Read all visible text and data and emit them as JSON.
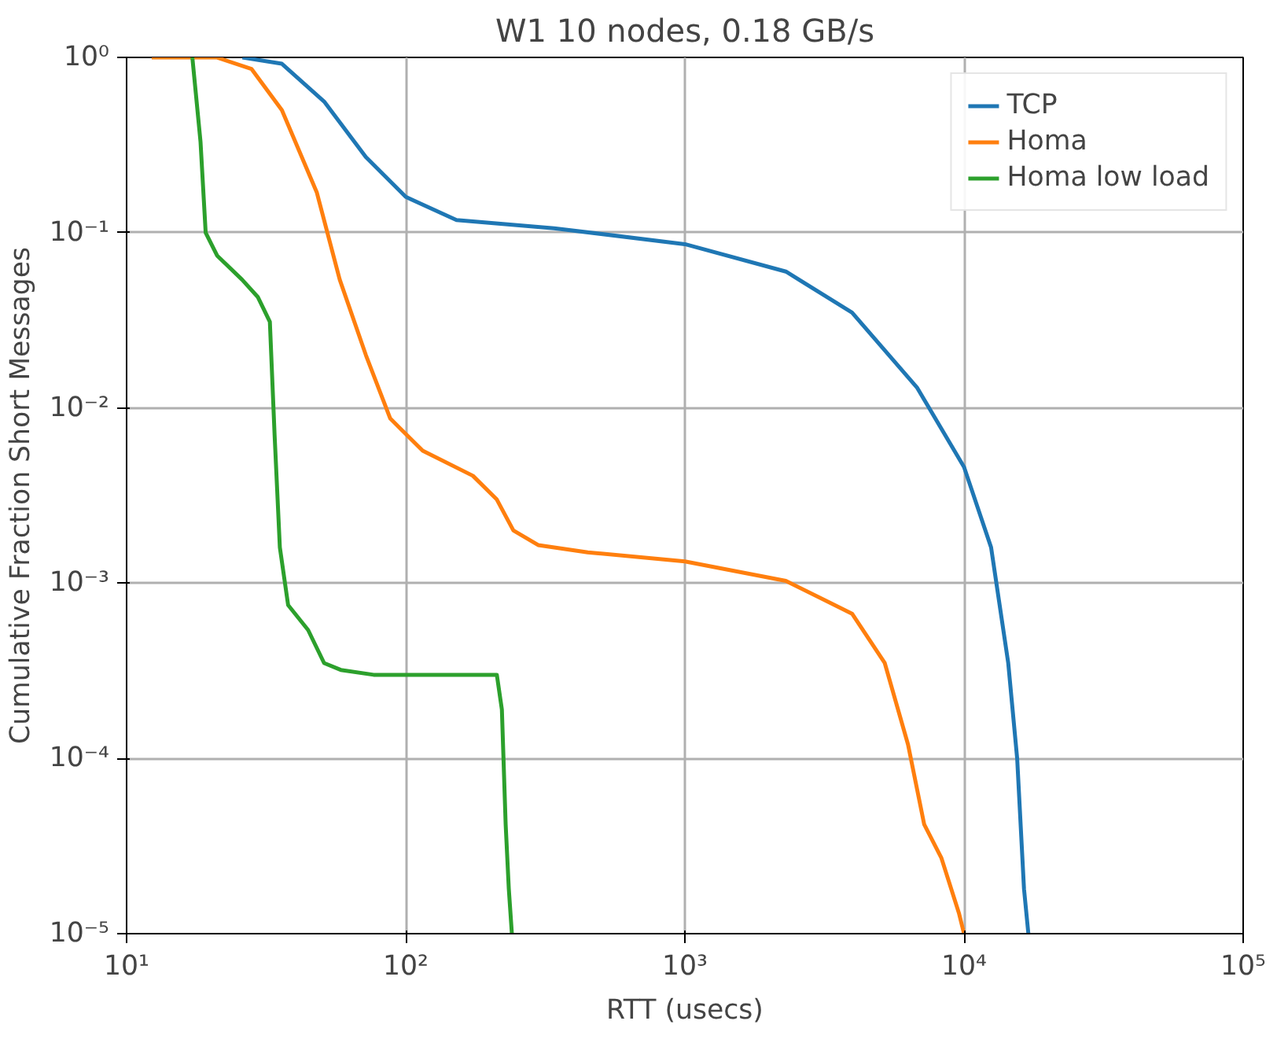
{
  "chart_data": {
    "type": "line",
    "title": "W1 10 nodes, 0.18 GB/s",
    "xlabel": "RTT (usecs)",
    "ylabel": "Cumulative Fraction Short Messages",
    "log": "xy",
    "grid": true,
    "legend": "top right",
    "line_style": "solid",
    "xlim": [
      10,
      100000
    ],
    "ylim": [
      1e-05,
      1
    ],
    "xticks": [
      {
        "value": 10,
        "label": "10¹"
      },
      {
        "value": 100,
        "label": "10²"
      },
      {
        "value": 1000,
        "label": "10³"
      },
      {
        "value": 10000,
        "label": "10⁴"
      },
      {
        "value": 100000,
        "label": "10⁵"
      }
    ],
    "yticks": [
      {
        "value": 1e-05,
        "label": "10⁻⁵"
      },
      {
        "value": 0.0001,
        "label": "10⁻⁴"
      },
      {
        "value": 0.001,
        "label": "10⁻³"
      },
      {
        "value": 0.01,
        "label": "10⁻²"
      },
      {
        "value": 0.1,
        "label": "10⁻¹"
      },
      {
        "value": 1,
        "label": "10⁰"
      }
    ],
    "series": [
      {
        "name": "TCP",
        "color": "#1f77b4",
        "x": [
          26,
          36,
          51,
          72,
          100,
          152,
          340,
          1000,
          2300,
          3970,
          6800,
          10000,
          12500,
          14400,
          15500,
          16400,
          17000
        ],
        "values": [
          1,
          0.92,
          0.56,
          0.27,
          0.16,
          0.118,
          0.106,
          0.086,
          0.06,
          0.035,
          0.013,
          0.0046,
          0.0016,
          0.00035,
          0.0001,
          1.8e-05,
          1e-05
        ]
      },
      {
        "name": "Homa",
        "color": "#ff7f0e",
        "x": [
          12.3,
          21,
          28,
          36,
          48,
          58,
          72,
          88,
          115,
          174,
          212,
          243,
          298,
          449,
          1000,
          2300,
          3970,
          5200,
          6300,
          7200,
          8300,
          9600,
          10000
        ],
        "values": [
          1,
          1,
          0.86,
          0.5,
          0.17,
          0.054,
          0.02,
          0.0087,
          0.0057,
          0.0041,
          0.003,
          0.002,
          0.00165,
          0.0015,
          0.00133,
          0.00103,
          0.00067,
          0.00035,
          0.00012,
          4.2e-05,
          2.7e-05,
          1.3e-05,
          1e-05
        ]
      },
      {
        "name": "Homa low load",
        "color": "#2ca02c",
        "x": [
          17.2,
          18.4,
          19.2,
          21.1,
          25.9,
          29.5,
          32.6,
          33.9,
          35.4,
          37.9,
          44.7,
          51,
          58.5,
          76.7,
          212,
          221,
          228,
          234,
          240
        ],
        "values": [
          1,
          0.33,
          0.1,
          0.074,
          0.054,
          0.043,
          0.031,
          0.007,
          0.0016,
          0.00075,
          0.00054,
          0.00035,
          0.00032,
          0.0003,
          0.0003,
          0.00019,
          4.2e-05,
          1.8e-05,
          1e-05
        ]
      }
    ]
  }
}
